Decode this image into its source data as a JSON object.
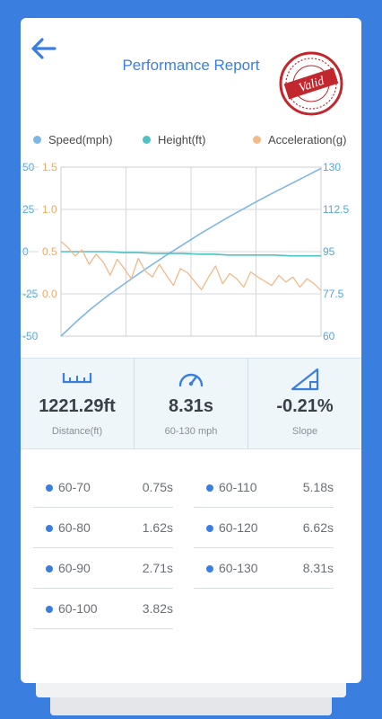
{
  "header": {
    "title": "Performance Report",
    "stamp_text": "Valid"
  },
  "legend": [
    {
      "label": "Speed(mph)",
      "color": "#7eb6e6"
    },
    {
      "label": "Height(ft)",
      "color": "#4fc0c4"
    },
    {
      "label": "Acceleration(g)",
      "color": "#f2b98a"
    }
  ],
  "chart_data": {
    "type": "line",
    "axes": {
      "height_ticks": [
        "50",
        "25",
        "0",
        "-25",
        "-50"
      ],
      "accel_ticks": [
        "1.5",
        "1.0",
        "0.5",
        "0.0"
      ],
      "speed_ticks": [
        "130",
        "112.5",
        "95",
        "77.5",
        "60"
      ],
      "height_range": [
        -50,
        50
      ],
      "accel_range": [
        -0.5,
        1.5
      ],
      "speed_range": [
        60,
        130
      ]
    },
    "grid": true,
    "series": [
      {
        "name": "Speed(mph)",
        "axis": "right",
        "color": "#7eb6e6",
        "values": [
          60,
          66,
          71.5,
          76.5,
          81,
          85.5,
          89.8,
          94,
          98,
          102,
          105.8,
          109.5,
          113,
          116.5,
          119.8,
          123,
          126.2,
          129.5
        ]
      },
      {
        "name": "Height(ft)",
        "axis": "left",
        "color": "#4fc0c4",
        "values": [
          0,
          0,
          0,
          0,
          -0.5,
          -0.5,
          -1,
          -1,
          -1,
          -1.5,
          -1.5,
          -2,
          -2,
          -2,
          -2,
          -2.5,
          -2.5,
          -2.5
        ]
      },
      {
        "name": "Acceleration(g)",
        "axis": "accel",
        "color": "#f2b98a",
        "values": [
          0.62,
          0.55,
          0.45,
          0.52,
          0.35,
          0.47,
          0.38,
          0.22,
          0.41,
          0.3,
          0.18,
          0.42,
          0.27,
          0.2,
          0.35,
          0.22,
          0.1,
          0.3,
          0.25,
          0.15,
          0.05,
          0.2,
          0.33,
          0.12,
          0.24,
          0.18,
          0.08,
          0.26,
          0.2,
          0.15,
          0.1,
          0.22,
          0.14,
          0.2,
          0.08,
          0.18,
          0.12,
          0.04
        ]
      }
    ]
  },
  "stats": [
    {
      "value": "1221.29ft",
      "label": "Distance(ft)",
      "icon": "ruler-icon"
    },
    {
      "value": "8.31s",
      "label": "60-130 mph",
      "icon": "speedometer-icon"
    },
    {
      "value": "-0.21%",
      "label": "Slope",
      "icon": "slope-icon"
    }
  ],
  "splits": [
    {
      "range": "60-70",
      "time": "0.75s"
    },
    {
      "range": "60-110",
      "time": "5.18s"
    },
    {
      "range": "60-80",
      "time": "1.62s"
    },
    {
      "range": "60-120",
      "time": "6.62s"
    },
    {
      "range": "60-90",
      "time": "2.71s"
    },
    {
      "range": "60-130",
      "time": "8.31s"
    },
    {
      "range": "60-100",
      "time": "3.82s"
    }
  ]
}
